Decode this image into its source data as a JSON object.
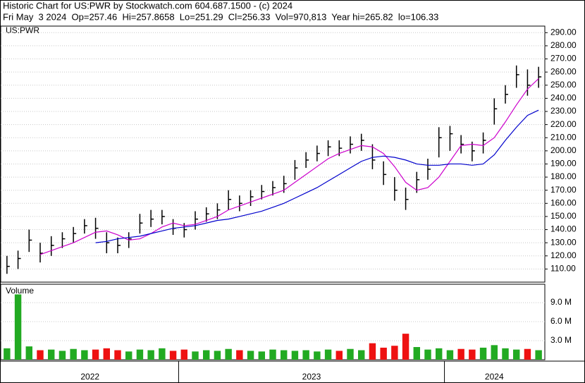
{
  "chart_data": [
    {
      "type": "hlc",
      "title": "Historic Chart for US:PWR by Stockwatch.com 604.687.1500 - (c) 2024",
      "subtitle": "Fri May  3 2024  Op=257.46  Hi=257.8658  Lo=251.29  Cl=256.33  Vol=970,813  Year hi=265.82  lo=106.33",
      "label": "US:PWR",
      "color": "#000000",
      "xlim": [
        0,
        49
      ],
      "xticks": [
        {
          "value": 0,
          "label": "2022"
        },
        {
          "value": 16,
          "label": "2023"
        },
        {
          "value": 40,
          "label": "2024"
        }
      ],
      "ylim": [
        100,
        295
      ],
      "yticks": [
        {
          "value": 110,
          "label": "110.00"
        },
        {
          "value": 120,
          "label": "120.00"
        },
        {
          "value": 130,
          "label": "130.00"
        },
        {
          "value": 140,
          "label": "140.00"
        },
        {
          "value": 150,
          "label": "150.00"
        },
        {
          "value": 160,
          "label": "160.00"
        },
        {
          "value": 170,
          "label": "170.00"
        },
        {
          "value": 180,
          "label": "180.00"
        },
        {
          "value": 190,
          "label": "190.00"
        },
        {
          "value": 200,
          "label": "200.00"
        },
        {
          "value": 210,
          "label": "210.00"
        },
        {
          "value": 220,
          "label": "220.00"
        },
        {
          "value": 230,
          "label": "230.00"
        },
        {
          "value": 240,
          "label": "240.00"
        },
        {
          "value": 250,
          "label": "250.00"
        },
        {
          "value": 260,
          "label": "260.00"
        },
        {
          "value": 270,
          "label": "270.00"
        },
        {
          "value": 280,
          "label": "280.00"
        },
        {
          "value": 290,
          "label": "290.00"
        }
      ],
      "grid": true,
      "high": [
        120,
        124,
        140,
        130,
        135,
        138,
        142,
        148,
        149,
        138,
        134,
        138,
        152,
        155,
        155,
        148,
        145,
        154,
        157,
        160,
        170,
        166,
        170,
        174,
        177,
        181,
        193,
        199,
        204,
        208,
        208,
        211,
        213,
        205,
        192,
        180,
        172,
        184,
        194,
        218,
        219,
        212,
        207,
        214,
        240,
        250,
        265,
        262,
        264
      ],
      "low": [
        106.33,
        110,
        123,
        115,
        120,
        126,
        130,
        137,
        133,
        122,
        122,
        126,
        137,
        142,
        144,
        136,
        134,
        140,
        146,
        148,
        155,
        154,
        158,
        163,
        166,
        168,
        178,
        187,
        192,
        196,
        196,
        198,
        200,
        186,
        174,
        162,
        155,
        168,
        178,
        195,
        200,
        198,
        192,
        198,
        220,
        236,
        248,
        242,
        248
      ],
      "close": [
        112,
        118,
        132,
        122,
        128,
        133,
        137,
        143,
        141,
        130,
        128,
        133,
        145,
        148,
        150,
        141,
        140,
        148,
        152,
        155,
        163,
        160,
        165,
        169,
        172,
        175,
        187,
        193,
        198,
        203,
        202,
        205,
        208,
        193,
        182,
        170,
        163,
        178,
        186,
        210,
        213,
        205,
        200,
        208,
        232,
        243,
        258,
        250,
        256.33
      ],
      "lines": [
        {
          "color": "#cc00cc",
          "values": [
            null,
            null,
            null,
            121,
            124,
            127,
            130,
            134,
            138,
            139,
            136,
            132,
            133,
            137,
            142,
            145,
            143,
            144,
            147,
            150,
            155,
            158,
            161,
            164,
            167,
            170,
            176,
            182,
            188,
            194,
            198,
            201,
            204,
            203,
            198,
            188,
            176,
            170,
            172,
            180,
            192,
            204,
            205,
            204,
            210,
            222,
            235,
            247,
            255
          ]
        },
        {
          "color": "#0000cc",
          "values": [
            null,
            null,
            null,
            null,
            null,
            null,
            null,
            null,
            130,
            131,
            133,
            134,
            135,
            137,
            139,
            141,
            142,
            143,
            145,
            147,
            148,
            150,
            152,
            154,
            157,
            160,
            164,
            168,
            172,
            177,
            182,
            187,
            192,
            195,
            196,
            195,
            193,
            190,
            189,
            189,
            190,
            190,
            189,
            190,
            197,
            208,
            218,
            227,
            231
          ]
        }
      ]
    },
    {
      "type": "bar",
      "title": "Volume",
      "up_color": "#22aa22",
      "down_color": "#ee1111",
      "ylim": [
        0,
        11.9
      ],
      "yticks": [
        {
          "value": 3,
          "label": "3.0 M"
        },
        {
          "value": 6,
          "label": "6.0 M"
        },
        {
          "value": 9,
          "label": "9.0 M"
        }
      ],
      "values": [
        1.8,
        10.3,
        2.1,
        1.5,
        1.6,
        1.4,
        1.7,
        1.5,
        1.6,
        1.8,
        1.5,
        1.3,
        1.6,
        1.5,
        1.8,
        1.4,
        1.6,
        1.3,
        1.5,
        1.4,
        1.7,
        1.5,
        1.4,
        1.3,
        1.6,
        1.5,
        1.4,
        1.5,
        1.3,
        1.6,
        1.4,
        1.7,
        1.5,
        2.6,
        1.9,
        2.2,
        4.1,
        2.0,
        1.6,
        1.8,
        1.5,
        1.7,
        1.6,
        1.9,
        2.3,
        1.8,
        1.6,
        1.7,
        1.5
      ]
    }
  ]
}
